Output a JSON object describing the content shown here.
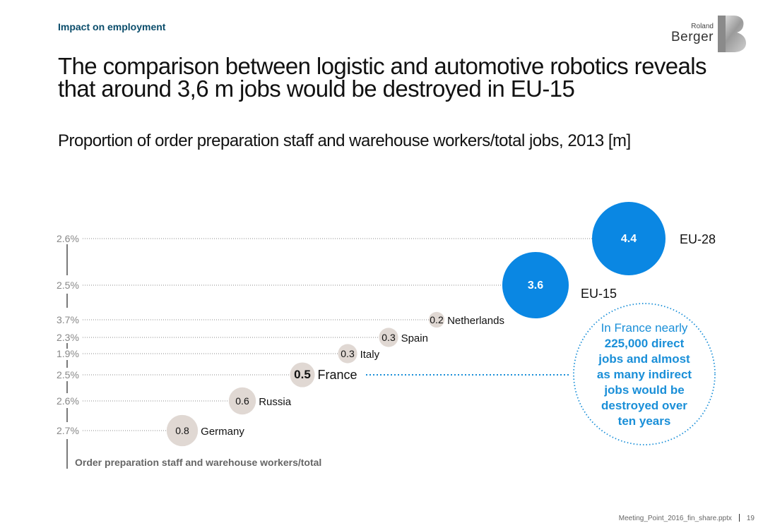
{
  "header": {
    "section_label": "Impact on employment",
    "title": "The comparison between logistic and automotive robotics reveals that around 3,6 m jobs would be destroyed in EU-15",
    "subtitle": "Proportion of order preparation staff and warehouse workers/total jobs, 2013 [m]"
  },
  "logo": {
    "line1": "Roland",
    "line2": "Berger",
    "glyph": "B"
  },
  "chart_data": {
    "type": "bubble",
    "x_axis_title": "Order preparation staff and warehouse workers/total",
    "series": [
      {
        "name": "Germany",
        "proportion": "2.7%",
        "jobs_m": "0.8"
      },
      {
        "name": "Russia",
        "proportion": "2.6%",
        "jobs_m": "0.6"
      },
      {
        "name": "France",
        "proportion": "2.5%",
        "jobs_m": "0.5",
        "highlight": true
      },
      {
        "name": "Italy",
        "proportion": "1.9%",
        "jobs_m": "0.3"
      },
      {
        "name": "Spain",
        "proportion": "2.3%",
        "jobs_m": "0.3"
      },
      {
        "name": "Netherlands",
        "proportion": "3.7%",
        "jobs_m": "0.2"
      },
      {
        "name": "EU-15",
        "proportion": "2.5%",
        "jobs_m": "3.6",
        "aggregate": true
      },
      {
        "name": "EU-28",
        "proportion": "2.6%",
        "jobs_m": "4.4",
        "aggregate": true
      }
    ],
    "annotation": {
      "line1": "In France nearly",
      "line2": "225,000 direct",
      "line3": "jobs and almost",
      "line4": "as many indirect",
      "line5": "jobs would be",
      "line6": "destroyed over",
      "line7": "ten years"
    },
    "colors": {
      "country_bubble": "#e0d8d3",
      "aggregate_bubble": "#0a87e3",
      "annotation": "#1a8fd8",
      "axis": "#7a7a7a"
    }
  },
  "footer": {
    "file_name": "Meeting_Point_2016_fin_share.pptx",
    "page_number": "19"
  }
}
